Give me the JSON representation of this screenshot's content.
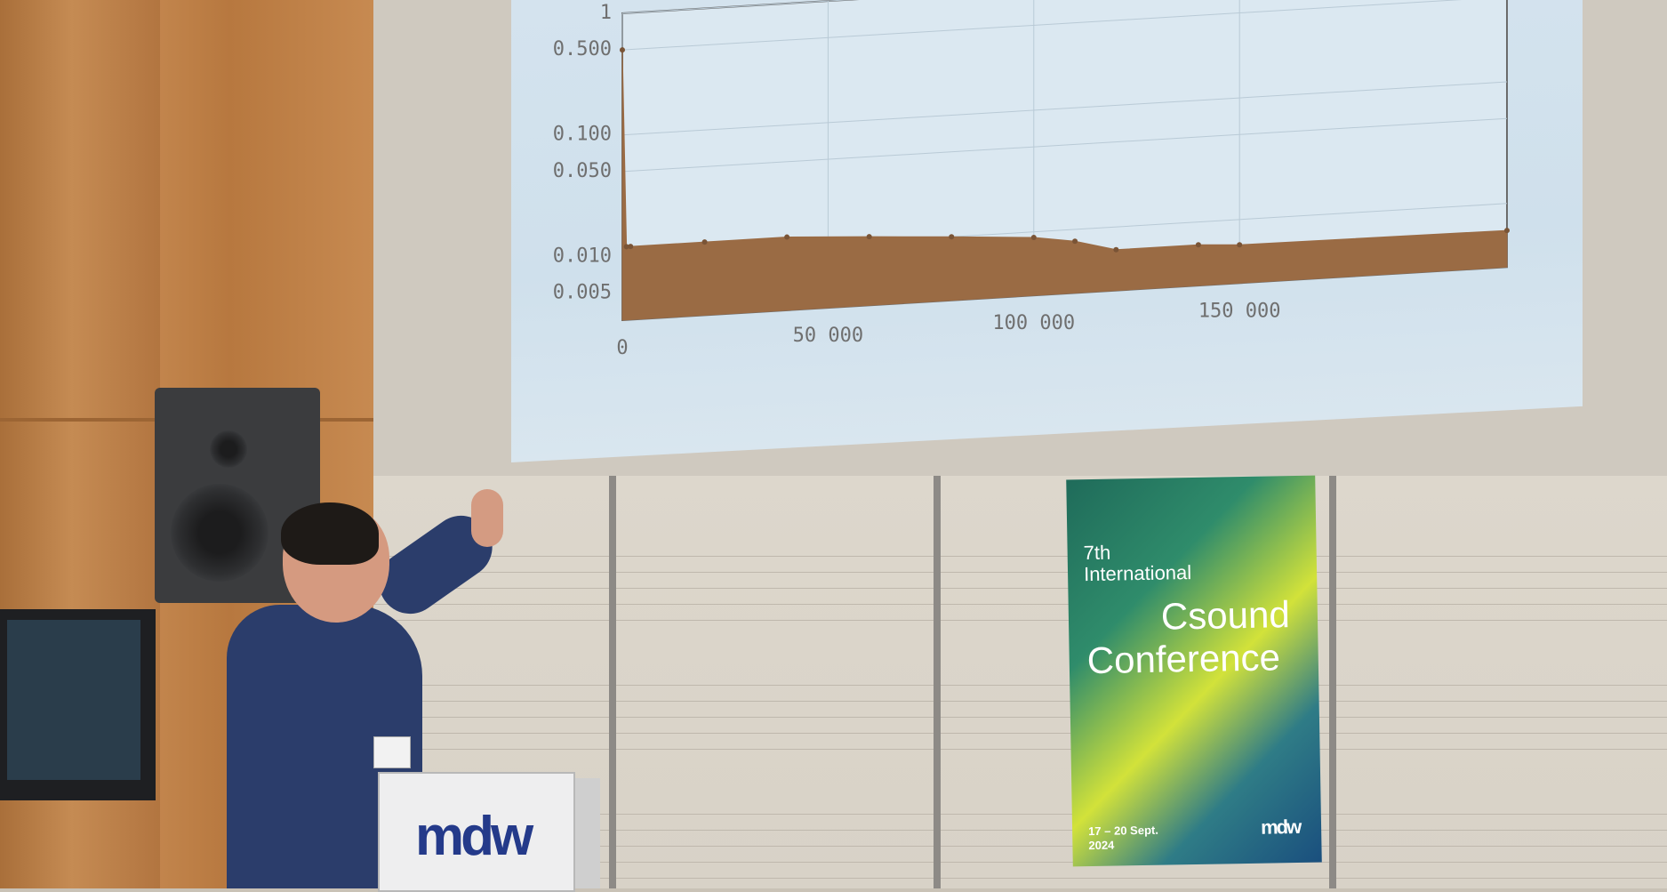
{
  "slide": {
    "chart_data": {
      "type": "area",
      "y_scale": "log",
      "ylim": [
        0.003,
        1
      ],
      "xlim": [
        0,
        215000
      ],
      "x_ticks": [
        "0",
        "50 000",
        "100 000",
        "150 000"
      ],
      "y_ticks": [
        "1",
        "0.500",
        "0.100",
        "0.050",
        "0.010",
        "0.005"
      ],
      "x_tick_values": [
        0,
        50000,
        100000,
        150000
      ],
      "y_tick_values": [
        1,
        0.5,
        0.1,
        0.05,
        0.01,
        0.005
      ],
      "grid": true,
      "series": [
        {
          "x": [
            0,
            1000,
            2000,
            20000,
            40000,
            60000,
            80000,
            100000,
            110000,
            120000,
            140000,
            150000,
            215000
          ],
          "y": [
            0.5,
            0.012,
            0.012,
            0.012,
            0.012,
            0.011,
            0.01,
            0.009,
            0.008,
            0.0065,
            0.0065,
            0.0062,
            0.006
          ],
          "color": "#9a6b44"
        }
      ]
    }
  },
  "poster": {
    "edition": "7th",
    "line1": "International",
    "line2": "Csound",
    "line3": "Conference",
    "dates": "17 – 20 Sept.",
    "year": "2024",
    "logo": "mdw"
  },
  "lectern": {
    "logo": "mdw"
  },
  "colors": {
    "screen": "#d4e3ee",
    "plot_fill": "#9a6b44",
    "wood": "#c38a52",
    "poster_green": "#2f8c6b",
    "poster_yellow": "#d2e23a",
    "lectern_logo": "#243a8a"
  }
}
